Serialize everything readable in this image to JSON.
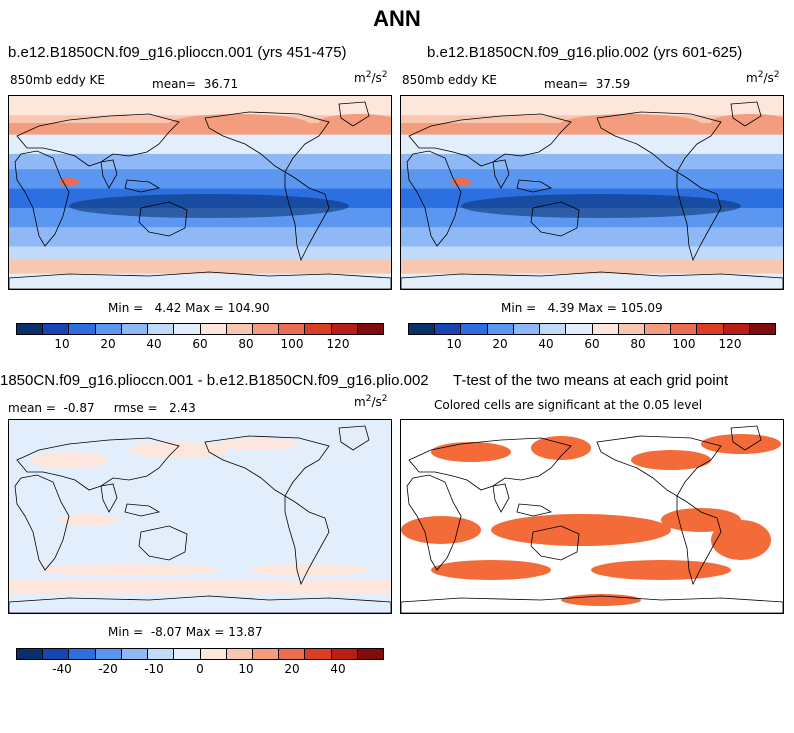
{
  "figure_title": "ANN",
  "colors": {
    "abs_scale": [
      "#08306b",
      "#1546b3",
      "#2b6fe0",
      "#5b96f0",
      "#8fb9f6",
      "#c2daf9",
      "#e3eefc",
      "#fde6dc",
      "#f9c6b0",
      "#f39c7e",
      "#ea6e4f",
      "#dc3e24",
      "#b81e16",
      "#800c0c"
    ],
    "diff_scale": [
      "#08306b",
      "#1546b3",
      "#2b6fe0",
      "#5b96f0",
      "#8fb9f6",
      "#c2daf9",
      "#e3eefc",
      "#fde6dc",
      "#f9c6b0",
      "#f39c7e",
      "#ea6e4f",
      "#dc3e24",
      "#b81e16",
      "#800c0c"
    ],
    "significant": "#f26b38",
    "land_outline": "#000000"
  },
  "chart_data": [
    {
      "type": "heatmap",
      "title": "b.e12.B1850CN.f09_g16.plioccn.001 (yrs 451-475)",
      "variable": "850mb eddy KE",
      "mean_label": "mean=",
      "mean": "36.71",
      "units": "m2/s2",
      "min_label": "Min =",
      "min": "4.42",
      "max_label": "Max =",
      "max": "104.90",
      "colorbar_ticks": [
        "10",
        "20",
        "40",
        "60",
        "80",
        "100",
        "120"
      ]
    },
    {
      "type": "heatmap",
      "title": "b.e12.B1850CN.f09_g16.plio.002 (yrs 601-625)",
      "variable": "850mb eddy KE",
      "mean_label": "mean=",
      "mean": "37.59",
      "units": "m2/s2",
      "min_label": "Min =",
      "min": "4.39",
      "max_label": "Max =",
      "max": "105.09",
      "colorbar_ticks": [
        "10",
        "20",
        "40",
        "60",
        "80",
        "100",
        "120"
      ]
    },
    {
      "type": "heatmap",
      "title": "1850CN.f09_g16.plioccn.001 - b.e12.B1850CN.f09_g16.plio.002",
      "mean_label": "mean =",
      "mean": "-0.87",
      "rmse_label": "rmse =",
      "rmse": "2.43",
      "units": "m2/s2",
      "min_label": "Min =",
      "min": "-8.07",
      "max_label": "Max =",
      "max": "13.87",
      "colorbar_ticks": [
        "-40",
        "-20",
        "-10",
        "0",
        "10",
        "20",
        "40"
      ]
    },
    {
      "type": "heatmap",
      "title": "T-test of the two means at each grid point",
      "subtitle": "Colored cells are significant at the 0.05 level"
    }
  ]
}
